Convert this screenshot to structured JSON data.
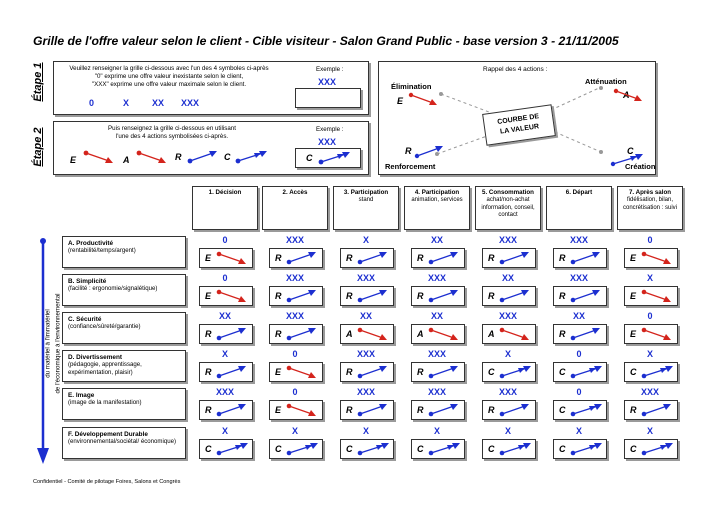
{
  "title": "Grille de l'offre valeur selon le client - Cible visiteur - Salon Grand Public - base version 3 - 21/11/2005",
  "etape1": {
    "label": "Étape 1",
    "text1": "Veuillez renseigner la grille ci-dessous avec l'un des 4 symboles ci-après",
    "text2": "\"0\" exprime une offre valeur inexistante selon le client,",
    "text3": "\"XXX\" exprime une offre valeur maximale selon le client.",
    "symbols": [
      "0",
      "X",
      "XX",
      "XXX"
    ],
    "example_label": "Exemple :",
    "example_value": "XXX"
  },
  "etape2": {
    "label": "Étape 2",
    "text1": "Puis renseignez la grille ci-dessous en utilisant",
    "text2": "l'une des 4 actions symbolisées ci-après.",
    "letters": [
      "E",
      "A",
      "R",
      "C"
    ],
    "example_label": "Exemple :",
    "example_value": "XXX",
    "example_letter": "C"
  },
  "recap": {
    "title": "Rappel des 4 actions :",
    "elimination": "Élimination",
    "attenuation": "Atténuation",
    "renforcement": "Renforcement",
    "creation": "Création",
    "courbe_line1": "COURBE DE",
    "courbe_line2": "LA VALEUR",
    "letter_e": "E",
    "letter_a": "A",
    "letter_r": "R",
    "letter_c": "C"
  },
  "vertical_label_1": "du matériel à l'immatériel",
  "vertical_label_2": "de l'économique à l'environnemental",
  "columns": [
    {
      "title": "1. Décision",
      "sub": ""
    },
    {
      "title": "2. Accès",
      "sub": ""
    },
    {
      "title": "3. Participation",
      "sub": "stand"
    },
    {
      "title": "4. Participation",
      "sub": "animation, services"
    },
    {
      "title": "5. Consommation",
      "sub": "achat/non-achat information, conseil, contact"
    },
    {
      "title": "6. Départ",
      "sub": ""
    },
    {
      "title": "7. Après salon",
      "sub": "fidélisation, bilan, concrétisation : suivi"
    }
  ],
  "rows": [
    {
      "title": "A. Productivité",
      "sub": "(rentabilité/temps/argent)",
      "values": [
        "0",
        "XXX",
        "X",
        "XX",
        "XXX",
        "XXX",
        "0"
      ],
      "actions": [
        "E",
        "R",
        "R",
        "R",
        "R",
        "R",
        "E"
      ]
    },
    {
      "title": "B. Simplicité",
      "sub": "(facilité : ergonomie/signalétique)",
      "values": [
        "0",
        "XXX",
        "XXX",
        "XXX",
        "XX",
        "XXX",
        "X"
      ],
      "actions": [
        "E",
        "R",
        "R",
        "R",
        "R",
        "R",
        "E"
      ]
    },
    {
      "title": "C. Sécurité",
      "sub": "(confiance/sûreté/garantie)",
      "values": [
        "XX",
        "XXX",
        "XX",
        "XX",
        "XXX",
        "XX",
        "0"
      ],
      "actions": [
        "R",
        "R",
        "A",
        "A",
        "A",
        "R",
        "E"
      ]
    },
    {
      "title": "D. Divertissement",
      "sub": "(pédagogie, apprentissage, expérimentation, plaisir)",
      "values": [
        "X",
        "0",
        "XXX",
        "XXX",
        "X",
        "0",
        "X"
      ],
      "actions": [
        "R",
        "E",
        "R",
        "R",
        "C",
        "C",
        "C"
      ]
    },
    {
      "title": "E. Image",
      "sub": "(image de la manifestation)",
      "values": [
        "XXX",
        "0",
        "XXX",
        "XXX",
        "XXX",
        "0",
        "XXX"
      ],
      "actions": [
        "R",
        "E",
        "R",
        "R",
        "R",
        "C",
        "R"
      ]
    },
    {
      "title": "F. Développement Durable",
      "sub": "(environnemental/sociétal/ économique)",
      "values": [
        "X",
        "X",
        "X",
        "X",
        "X",
        "X",
        "X"
      ],
      "actions": [
        "C",
        "C",
        "C",
        "C",
        "C",
        "C",
        "C"
      ]
    }
  ],
  "footer": "Confidentiel - Comité de pilotage Foires, Salons et Congrès",
  "colors": {
    "blue": "#1c2fd0",
    "red": "#d4241c",
    "grey": "#9a9a9a"
  }
}
